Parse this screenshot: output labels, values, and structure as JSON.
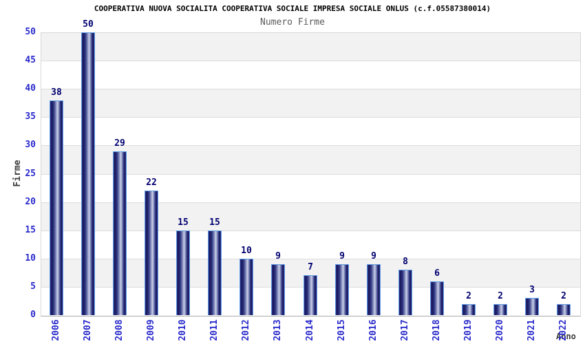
{
  "header": {
    "title": "COOPERATIVA NUOVA SOCIALITA COOPERATIVA SOCIALE IMPRESA SOCIALE ONLUS (c.f.05587380014)",
    "subtitle": "Numero Firme"
  },
  "chart_data": {
    "type": "bar",
    "title": "COOPERATIVA NUOVA SOCIALITA COOPERATIVA SOCIALE IMPRESA SOCIALE ONLUS (c.f.05587380014)",
    "subtitle": "Numero Firme",
    "xlabel": "Anno",
    "ylabel": "Firme",
    "categories": [
      "2006",
      "2007",
      "2008",
      "2009",
      "2010",
      "2011",
      "2012",
      "2013",
      "2014",
      "2015",
      "2016",
      "2017",
      "2018",
      "2019",
      "2020",
      "2021",
      "2022"
    ],
    "values": [
      38,
      50,
      29,
      22,
      15,
      15,
      10,
      9,
      7,
      9,
      9,
      8,
      6,
      2,
      2,
      3,
      2
    ],
    "bar_value_labels_visible": true,
    "ylim": [
      0,
      50
    ],
    "yticks": [
      0,
      5,
      10,
      15,
      20,
      25,
      30,
      35,
      40,
      45,
      50
    ],
    "grid": true,
    "legend": false,
    "background_bands": "alternating white/gray every 5 units, bottom band white",
    "colors": {
      "tick_label_blue": "#2a2acc",
      "value_label_navy": "#000070",
      "bar_border_lightblue": "#5f9ee6",
      "bar_gradient_dark": "#17175a",
      "bar_gradient_light": "#ccd1e7",
      "band_gray": "#f2f2f2",
      "band_white": "#ffffff",
      "gridline": "#dcdcdc",
      "plot_border": "#d6d6d6",
      "axis_line": "#aaaaaa",
      "title_color": "#000000",
      "subtitle_color": "#595959",
      "axis_title_color": "#3c3c3c"
    }
  }
}
